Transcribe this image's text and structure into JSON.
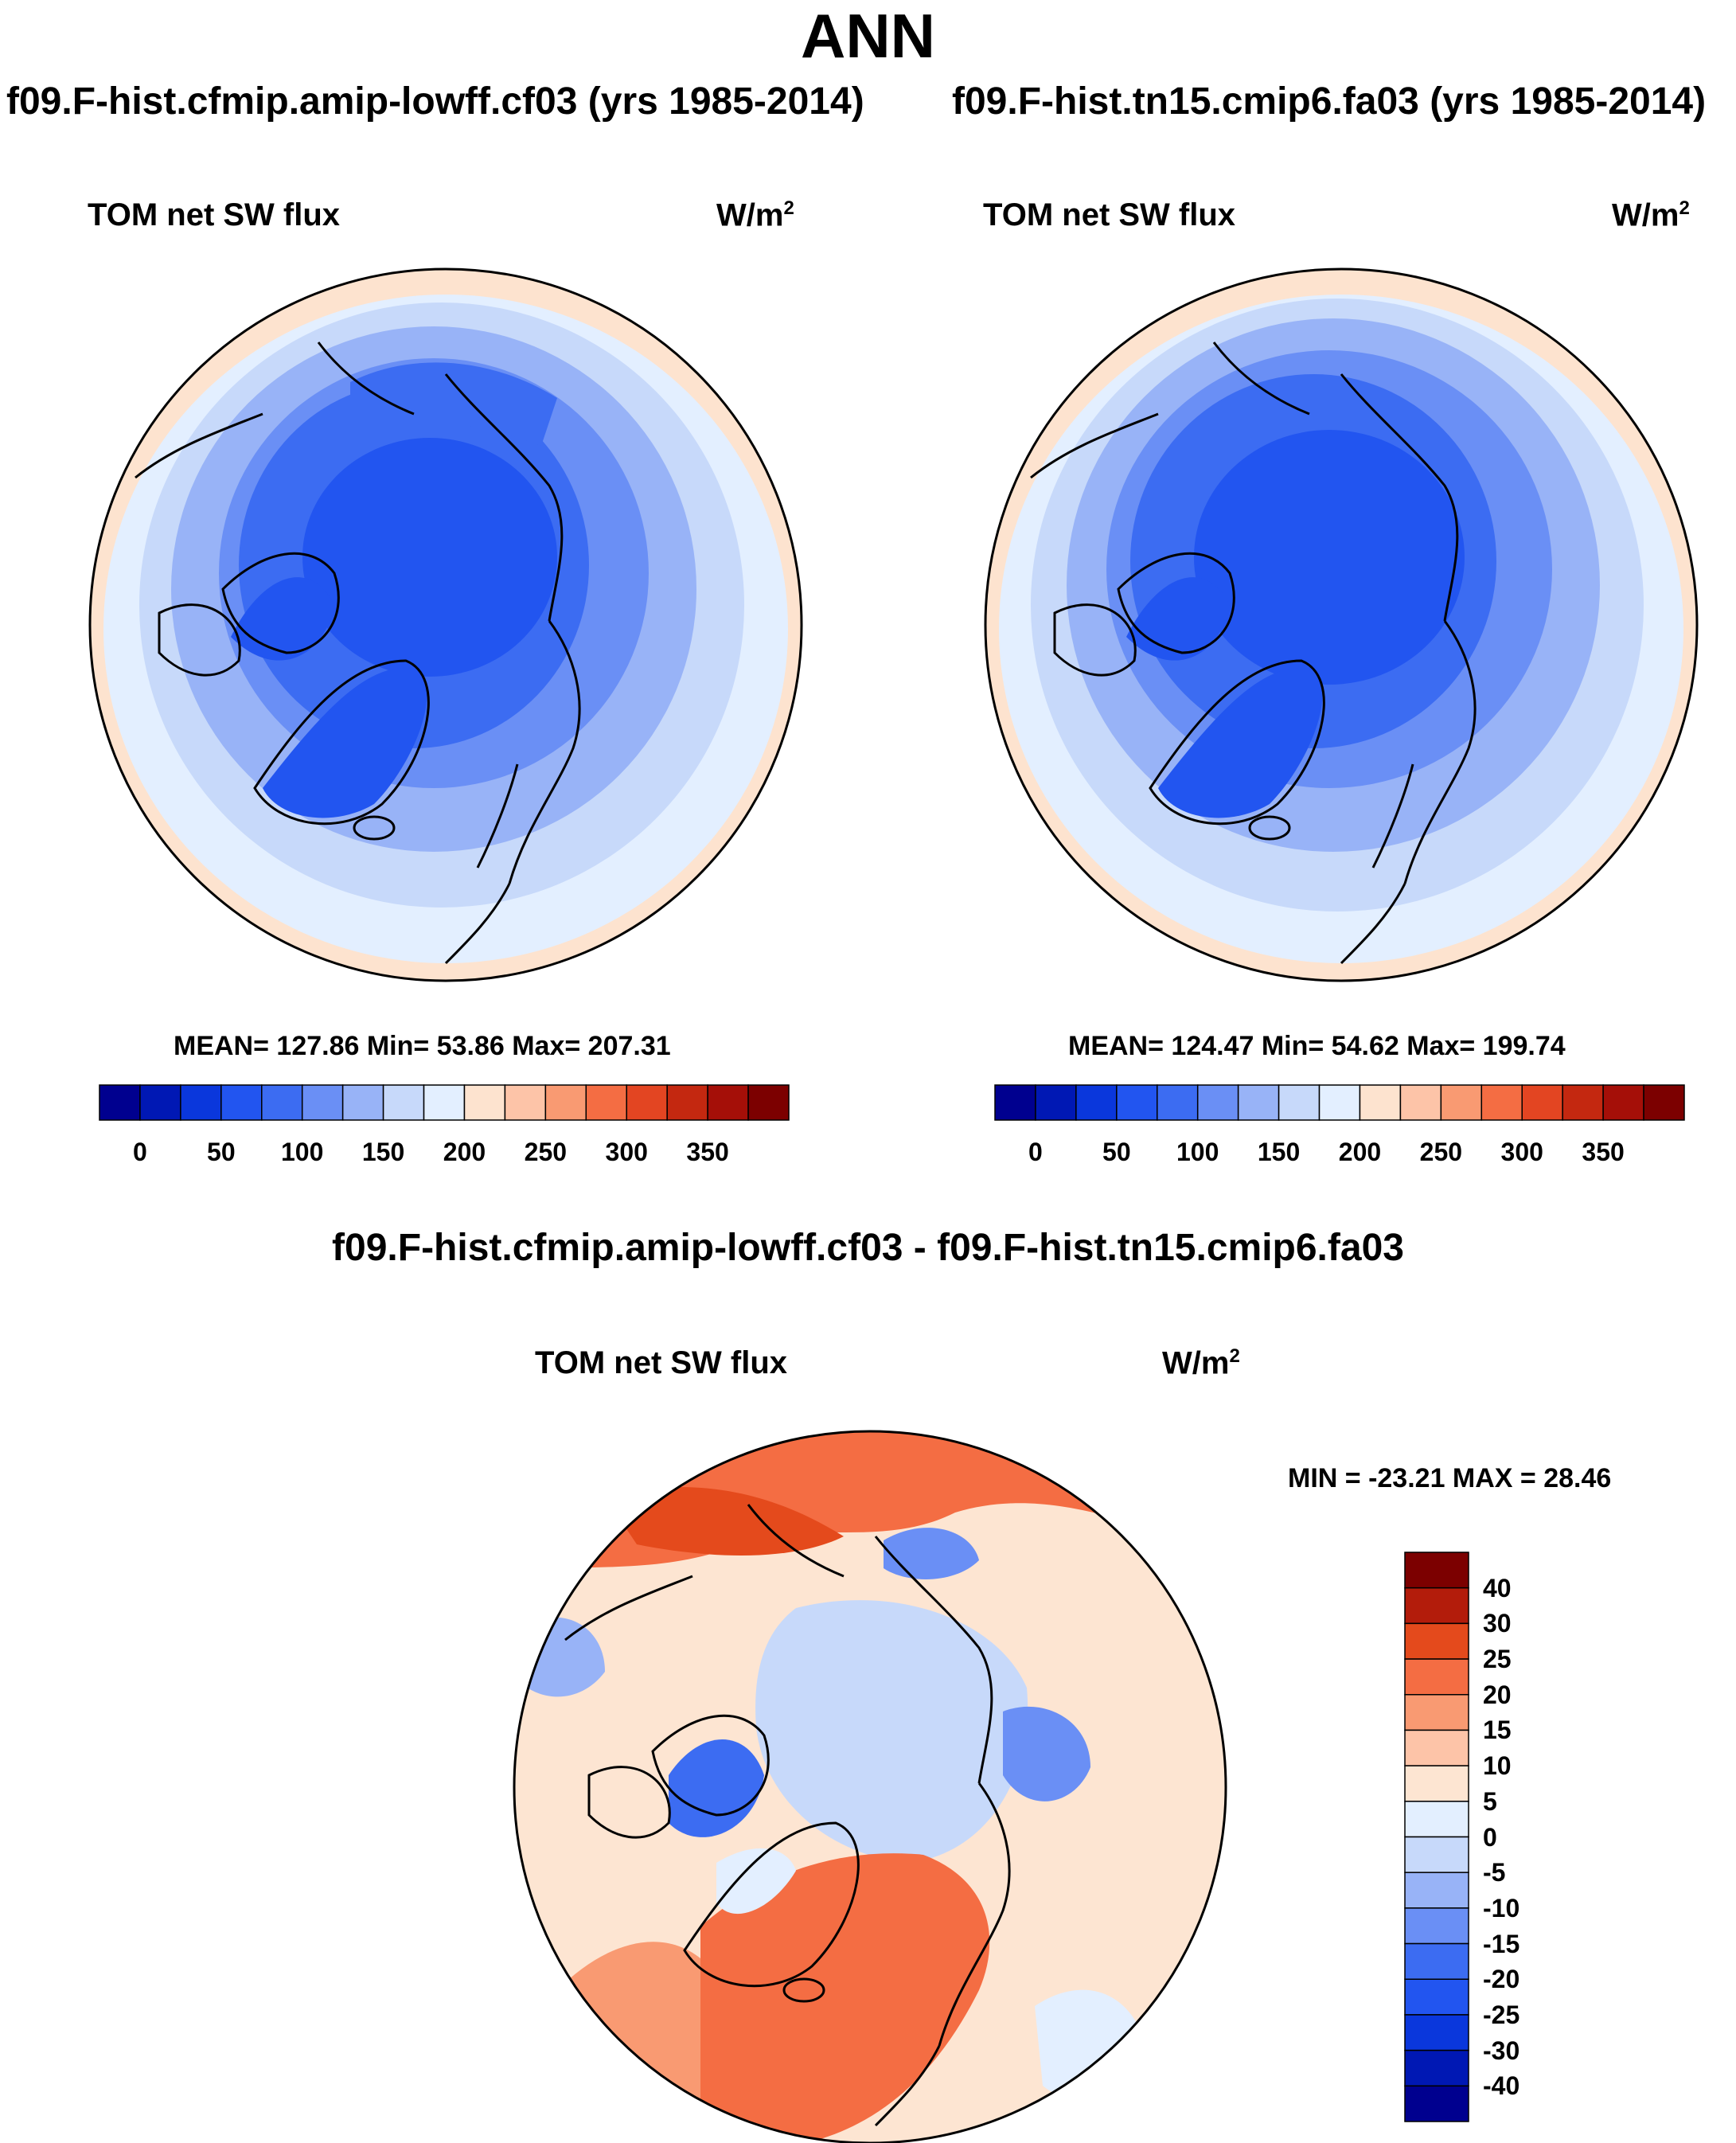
{
  "title": "ANN",
  "panels": [
    {
      "case_title": "f09.F-hist.cfmip.amip-lowff.cf03 (yrs 1985-2014)",
      "variable": "TOM net SW flux",
      "units": "W/m",
      "units_sup": "2",
      "stats": "MEAN= 127.86  Min=  53.86  Max= 207.31",
      "mean": 127.86,
      "min": 53.86,
      "max": 207.31
    },
    {
      "case_title": "f09.F-hist.tn15.cmip6.fa03 (yrs 1985-2014)",
      "variable": "TOM net SW flux",
      "units": "W/m",
      "units_sup": "2",
      "stats": "MEAN= 124.47  Min=  54.62  Max= 199.74",
      "mean": 124.47,
      "min": 54.62,
      "max": 199.74
    }
  ],
  "diff_panel": {
    "title": "f09.F-hist.cfmip.amip-lowff.cf03 - f09.F-hist.tn15.cmip6.fa03",
    "variable": "TOM net SW flux",
    "units": "W/m",
    "units_sup": "2",
    "stats": "MIN = -23.21 MAX =  28.46",
    "min": -23.21,
    "max": 28.46
  },
  "colorbar_main": {
    "colors": [
      "#00008f",
      "#0018b4",
      "#0a37dc",
      "#2255f0",
      "#3c6cf2",
      "#6a8ff5",
      "#98b3f7",
      "#c7d9fa",
      "#e3efff",
      "#fde3cf",
      "#fdc4a8",
      "#f99a72",
      "#f46d43",
      "#e34522",
      "#c42810",
      "#a50f08",
      "#7c0000"
    ],
    "ticks": [
      "0",
      "50",
      "100",
      "150",
      "200",
      "250",
      "300",
      "350"
    ]
  },
  "colorbar_diff": {
    "colors": [
      "#7c0000",
      "#b31c0b",
      "#e44a1c",
      "#f46d43",
      "#f99a72",
      "#fdc4a8",
      "#fde5d2",
      "#e3efff",
      "#c7d9fa",
      "#98b3f7",
      "#6a8ff5",
      "#3c6cf2",
      "#2255f0",
      "#0a37dc",
      "#0018b4",
      "#00008f"
    ],
    "ticks": [
      "40",
      "30",
      "25",
      "20",
      "15",
      "10",
      "5",
      "0",
      "-5",
      "-10",
      "-15",
      "-20",
      "-25",
      "-30",
      "-40"
    ]
  }
}
